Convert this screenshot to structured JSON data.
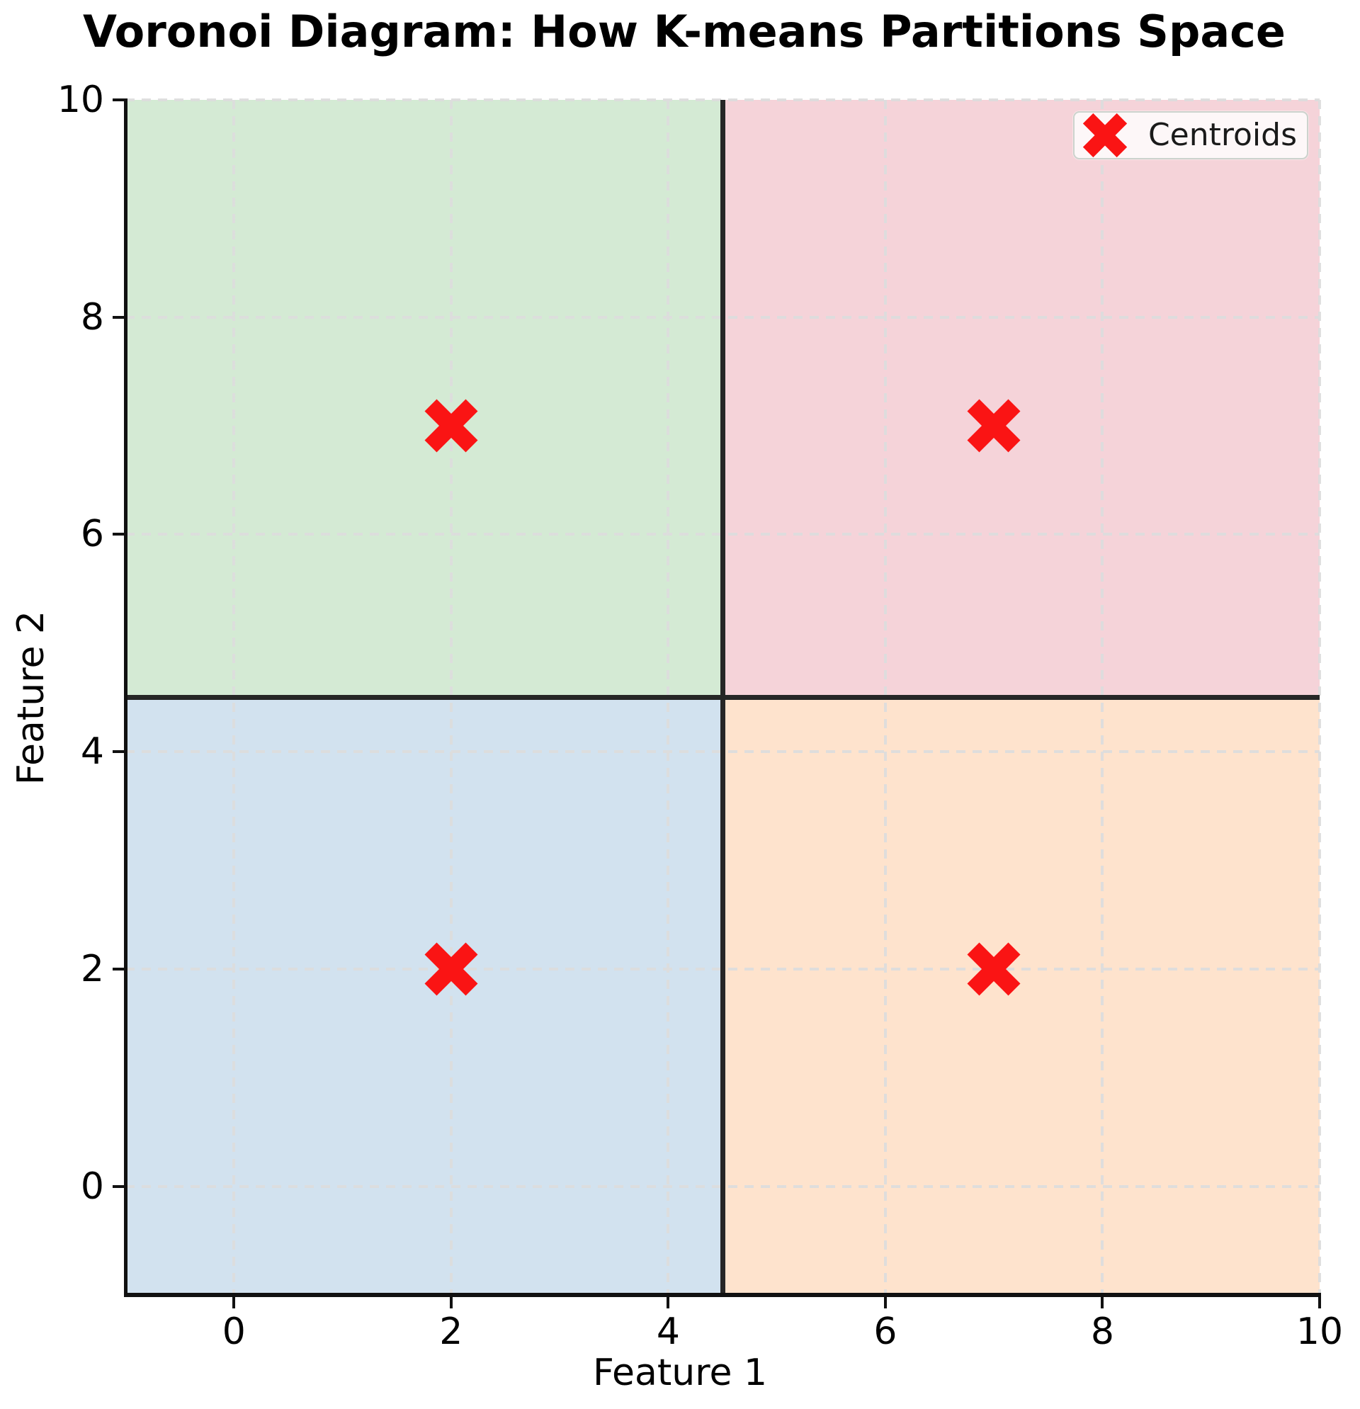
{
  "legend": {
    "label": "Centroids",
    "marker": "x-marker-icon"
  },
  "chart_data": {
    "type": "scatter",
    "title": "Voronoi Diagram: How K-means Partitions Space",
    "xlabel": "Feature 1",
    "ylabel": "Feature 2",
    "xlim": [
      -1,
      10
    ],
    "ylim": [
      -1,
      10
    ],
    "xticks": [
      0,
      2,
      4,
      6,
      8,
      10
    ],
    "yticks": [
      0,
      2,
      4,
      6,
      8,
      10
    ],
    "grid": "dashed",
    "legend_position": "upper right",
    "centroids": [
      [
        2,
        7
      ],
      [
        7,
        7
      ],
      [
        2,
        2
      ],
      [
        7,
        2
      ]
    ],
    "centroid_color": "#fa1414",
    "centroid_marker": "X",
    "regions": [
      {
        "name": "voronoi-cell-top-left",
        "x": [
          -1,
          4.5
        ],
        "y": [
          4.5,
          10
        ],
        "color": "#d4ead4"
      },
      {
        "name": "voronoi-cell-top-right",
        "x": [
          4.5,
          10
        ],
        "y": [
          4.5,
          10
        ],
        "color": "#f5d3d9"
      },
      {
        "name": "voronoi-cell-bottom-left",
        "x": [
          -1,
          4.5
        ],
        "y": [
          -1,
          4.5
        ],
        "color": "#d2e2ef"
      },
      {
        "name": "voronoi-cell-bottom-right",
        "x": [
          4.5,
          10
        ],
        "y": [
          -1,
          4.5
        ],
        "color": "#fee3cd"
      }
    ],
    "boundaries": [
      {
        "orientation": "vertical",
        "x": 4.5
      },
      {
        "orientation": "horizontal",
        "y": 4.5
      }
    ],
    "boundary_color": "#262626"
  }
}
